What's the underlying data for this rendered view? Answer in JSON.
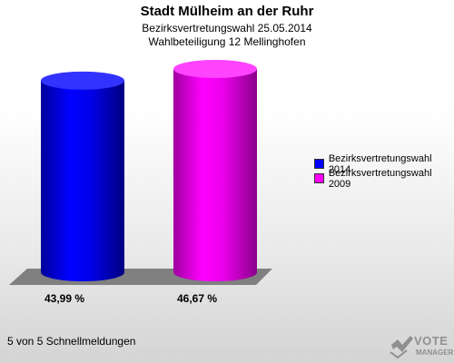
{
  "header": {
    "title": "Stadt Mülheim an der Ruhr",
    "subtitle1": "Bezirksvertretungswahl 25.05.2014",
    "subtitle2": "Wahlbeteiligung 12 Mellinghofen"
  },
  "chart_data": {
    "type": "bar",
    "title": "Stadt Mülheim an der Ruhr",
    "categories": [
      "Bezirksvertretungswahl 2014",
      "Bezirksvertretungswahl 2009"
    ],
    "values": [
      43.99,
      46.67
    ],
    "value_labels": [
      "43,99 %",
      "46,67 %"
    ],
    "colors": [
      "#0000ff",
      "#ff00ff"
    ],
    "ylim": [
      0,
      50
    ],
    "grid": false,
    "legend_position": "right"
  },
  "legend": {
    "items": [
      {
        "label": "Bezirksvertretungswahl 2014",
        "color": "#0000ff"
      },
      {
        "label": "Bezirksvertretungswahl 2009",
        "color": "#ff00ff"
      }
    ]
  },
  "footer": {
    "text": "5 von 5 Schnellmeldungen"
  },
  "logo": {
    "line1": "VOTE",
    "line2": "MANAGER"
  }
}
